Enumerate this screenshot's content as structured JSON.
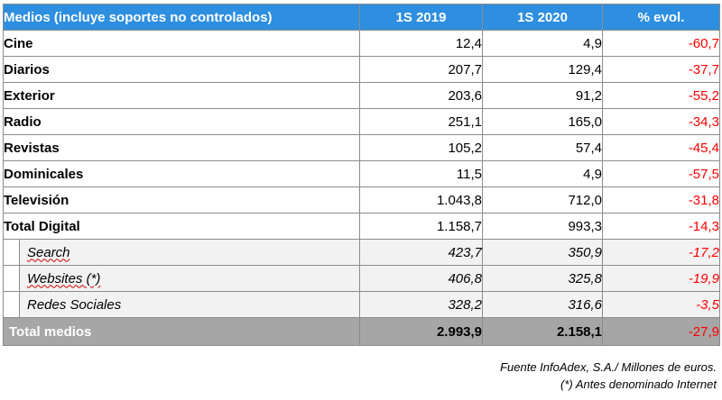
{
  "table": {
    "headers": [
      "Medios (incluye soportes no controlados)",
      "1S 2019",
      "1S 2020",
      "% evol."
    ],
    "rows": [
      {
        "medio": "Cine",
        "y2019": "12,4",
        "y2020": "4,9",
        "evol": "-60,7"
      },
      {
        "medio": "Diarios",
        "y2019": "207,7",
        "y2020": "129,4",
        "evol": "-37,7"
      },
      {
        "medio": "Exterior",
        "y2019": "203,6",
        "y2020": "91,2",
        "evol": "-55,2"
      },
      {
        "medio": "Radio",
        "y2019": "251,1",
        "y2020": "165,0",
        "evol": "-34,3"
      },
      {
        "medio": "Revistas",
        "y2019": "105,2",
        "y2020": "57,4",
        "evol": "-45,4"
      },
      {
        "medio": "Dominicales",
        "y2019": "11,5",
        "y2020": "4,9",
        "evol": "-57,5"
      },
      {
        "medio": "Televisión",
        "y2019": "1.043,8",
        "y2020": "712,0",
        "evol": "-31,8"
      },
      {
        "medio": "Total Digital",
        "y2019": "1.158,7",
        "y2020": "993,3",
        "evol": "-14,3"
      }
    ],
    "sub_rows": [
      {
        "medio": "Search",
        "y2019": "423,7",
        "y2020": "350,9",
        "evol": "-17,2"
      },
      {
        "medio": "Websites (*)",
        "y2019": "406,8",
        "y2020": "325,8",
        "evol": "-19,9"
      },
      {
        "medio": "Redes Sociales",
        "y2019": "328,2",
        "y2020": "316,6",
        "evol": "-3,5"
      }
    ],
    "total": {
      "medio": "Total medios",
      "y2019": "2.993,9",
      "y2020": "2.158,1",
      "evol": "-27,9"
    }
  },
  "footnotes": {
    "source": "Fuente InfoAdex, S.A./ Millones de euros.",
    "note": "(*) Antes denominado Internet"
  },
  "colors": {
    "header_bg": "#2e8ee0",
    "total_bg": "#a6a6a6",
    "negative": "#ff0000"
  }
}
